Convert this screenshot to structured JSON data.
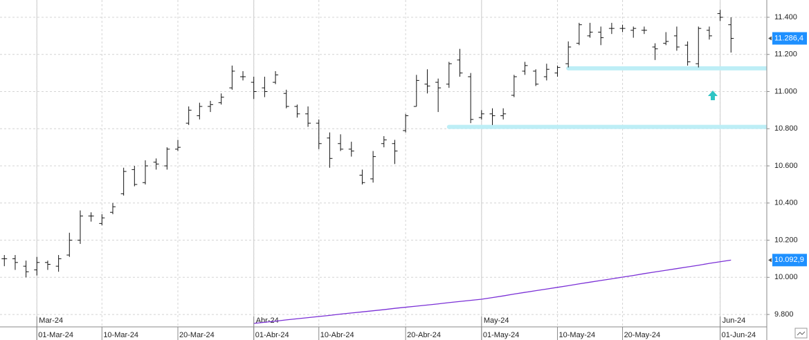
{
  "chart_data": {
    "type": "ohlc",
    "ylim": [
      9737,
      11493
    ],
    "yticks": [
      {
        "value": 9800,
        "label": "9.800"
      },
      {
        "value": 10000,
        "label": "10.000"
      },
      {
        "value": 10200,
        "label": "10.200"
      },
      {
        "value": 10400,
        "label": "10.400"
      },
      {
        "value": 10600,
        "label": "10.600"
      },
      {
        "value": 10800,
        "label": "10.800"
      },
      {
        "value": 11000,
        "label": "11.000"
      },
      {
        "value": 11200,
        "label": "11.200"
      },
      {
        "value": 11400,
        "label": "11.400"
      }
    ],
    "xlim": [
      -0.4,
      70.3
    ],
    "month_ticks": [
      {
        "value": 3,
        "label": "Mar-24"
      },
      {
        "value": 23,
        "label": "Abr-24"
      },
      {
        "value": 44,
        "label": "May-24"
      },
      {
        "value": 66,
        "label": "Jun-24"
      }
    ],
    "xticks": [
      {
        "value": 3,
        "label": "01-Mar-24"
      },
      {
        "value": 9,
        "label": "10-Mar-24"
      },
      {
        "value": 16,
        "label": "20-Mar-24"
      },
      {
        "value": 23,
        "label": "01-Abr-24"
      },
      {
        "value": 29,
        "label": "10-Abr-24"
      },
      {
        "value": 37,
        "label": "20-Abr-24"
      },
      {
        "value": 44,
        "label": "01-May-24"
      },
      {
        "value": 51,
        "label": "10-May-24"
      },
      {
        "value": 57,
        "label": "20-May-24"
      },
      {
        "value": 66,
        "label": "01-Jun-24"
      }
    ],
    "grid": true,
    "series": [
      {
        "type": "ohlc",
        "color": "#111111",
        "tag_color": "#1e90ff",
        "open": [
          10100,
          10100,
          10060,
          10040,
          10080,
          10060,
          10120,
          10200,
          10330,
          10290,
          10350,
          10450,
          10580,
          10510,
          10620,
          10600,
          10690,
          10830,
          10870,
          10920,
          10940,
          11020,
          11080,
          11050,
          11020,
          11050,
          10990,
          10920,
          10880,
          10830,
          10750,
          10720,
          10690,
          10550,
          10530,
          10720,
          10720,
          10790,
          10920,
          11040,
          11050,
          11040,
          11170,
          11080,
          10860,
          10880,
          10870,
          10980,
          11110,
          11110,
          11080,
          11100,
          11150,
          11260,
          11300,
          11320,
          11340,
          11340,
          11330,
          11330,
          11240,
          11260,
          11300,
          11250,
          11150,
          11330,
          11420,
          11360
        ],
        "high": [
          10120,
          10120,
          10090,
          10110,
          10090,
          10120,
          10240,
          10360,
          10350,
          10340,
          10400,
          10590,
          10600,
          10630,
          10640,
          10700,
          10740,
          10920,
          10940,
          10950,
          10990,
          11140,
          11110,
          11080,
          11080,
          11110,
          11010,
          10930,
          10920,
          10850,
          10780,
          10770,
          10730,
          10580,
          10680,
          10760,
          10740,
          10880,
          11090,
          11120,
          11070,
          11160,
          11230,
          11100,
          10900,
          10910,
          10910,
          11090,
          11160,
          11120,
          11150,
          11140,
          11270,
          11370,
          11370,
          11350,
          11370,
          11360,
          11350,
          11350,
          11260,
          11320,
          11350,
          11270,
          11350,
          11350,
          11440,
          11400
        ],
        "low": [
          10060,
          10040,
          10000,
          10010,
          10040,
          10030,
          10110,
          10180,
          10300,
          10280,
          10340,
          10440,
          10490,
          10500,
          10580,
          10580,
          10680,
          10820,
          10850,
          10890,
          10930,
          11010,
          11060,
          10960,
          10970,
          11040,
          10910,
          10860,
          10810,
          10690,
          10590,
          10680,
          10650,
          10500,
          10510,
          10700,
          10610,
          10780,
          10920,
          10990,
          10890,
          11020,
          11080,
          10830,
          10850,
          10820,
          10850,
          10970,
          11090,
          11030,
          11060,
          11080,
          11130,
          11250,
          11290,
          11250,
          11310,
          11320,
          11290,
          11310,
          11170,
          11250,
          11220,
          11140,
          11130,
          11280,
          11380,
          11210
        ],
        "close": [
          10100,
          10080,
          10030,
          10080,
          10070,
          10100,
          10200,
          10330,
          10330,
          10320,
          10380,
          10570,
          10500,
          10600,
          10610,
          10690,
          10700,
          10900,
          10920,
          10930,
          10970,
          11110,
          11080,
          11000,
          11000,
          11090,
          10920,
          10880,
          10830,
          10720,
          10640,
          10690,
          10680,
          10510,
          10650,
          10740,
          10680,
          10870,
          11060,
          11030,
          11020,
          11150,
          11100,
          10850,
          10880,
          10870,
          10880,
          11080,
          11140,
          11040,
          11120,
          11130,
          11240,
          11360,
          11320,
          11290,
          11340,
          11340,
          11340,
          11330,
          11230,
          11270,
          11240,
          11160,
          11340,
          11300,
          11400,
          11286.4
        ],
        "last_label": "11.286,4"
      },
      {
        "type": "line",
        "color": "#7a2fd6",
        "tag_color": "#1e90ff",
        "values": [
          null,
          null,
          null,
          null,
          null,
          null,
          null,
          null,
          null,
          null,
          null,
          null,
          null,
          null,
          null,
          null,
          null,
          null,
          null,
          null,
          null,
          null,
          null,
          9752,
          9758,
          9764,
          9771,
          9777,
          9783,
          9789,
          9795,
          9802,
          9808,
          9814,
          9820,
          9826,
          9833,
          9839,
          9845,
          9851,
          9857,
          9864,
          9870,
          9876,
          9882,
          9891,
          9900,
          9910,
          9919,
          9928,
          9937,
          9946,
          9955,
          9965,
          9974,
          9983,
          9992,
          10001,
          10010,
          10020,
          10029,
          10038,
          10047,
          10056,
          10065,
          10075,
          10084,
          10092.9
        ],
        "last_label": "10.092,9"
      }
    ],
    "hlines": [
      {
        "value": 11125,
        "start": 52,
        "color": "#bdeef6"
      },
      {
        "value": 10810,
        "start": 41,
        "color": "#bdeef6"
      }
    ]
  }
}
